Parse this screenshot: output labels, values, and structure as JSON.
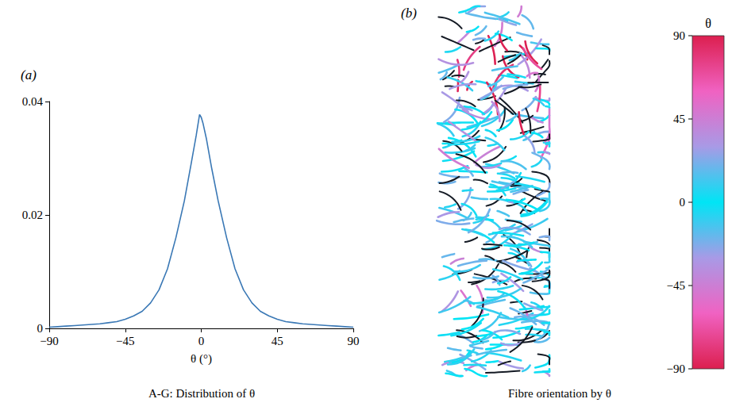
{
  "chart_data": [
    {
      "type": "line",
      "panel_label": "(a)",
      "caption": "A-G: Distribution of θ",
      "xlabel": "θ (°)",
      "x": [
        -90,
        -85,
        -80,
        -75,
        -70,
        -65,
        -60,
        -55,
        -50,
        -45,
        -40,
        -35,
        -30,
        -25,
        -20,
        -15,
        -10,
        -6,
        -3,
        -1,
        0,
        1,
        3,
        6,
        10,
        15,
        20,
        25,
        30,
        35,
        40,
        45,
        50,
        55,
        60,
        65,
        70,
        75,
        80,
        85,
        90
      ],
      "values": [
        0.0002,
        0.0003,
        0.0004,
        0.0005,
        0.0006,
        0.0007,
        0.0008,
        0.001,
        0.0012,
        0.0016,
        0.0022,
        0.003,
        0.0045,
        0.0068,
        0.0105,
        0.016,
        0.0225,
        0.029,
        0.034,
        0.0377,
        0.0372,
        0.0362,
        0.0335,
        0.0285,
        0.0225,
        0.016,
        0.0105,
        0.0068,
        0.0045,
        0.003,
        0.0022,
        0.0016,
        0.0012,
        0.001,
        0.0008,
        0.0007,
        0.0006,
        0.0005,
        0.0004,
        0.0003,
        0.0002
      ],
      "color": "#3a78b5",
      "xlim": [
        -90,
        90
      ],
      "xticks": [
        {
          "value": -90,
          "label": "−90"
        },
        {
          "value": -45,
          "label": "−45"
        },
        0,
        45,
        90
      ],
      "ylim": [
        0,
        0.04
      ],
      "yticks": [
        0,
        0.02,
        0.04
      ],
      "grid": false
    },
    {
      "type": "image",
      "panel_label": "(b)",
      "caption": "Fibre orientation by θ",
      "colorbar": {
        "title": "θ",
        "range": [
          -90,
          90
        ],
        "ticks": [
          90,
          45,
          0,
          {
            "value": -45,
            "label": "−45"
          },
          {
            "value": -90,
            "label": "−90"
          }
        ],
        "colors": [
          "#dc1f4f",
          "#f062c2",
          "#a89ae6",
          "#00e5f5",
          "#a89ae6",
          "#f062c2",
          "#dc1f4f"
        ]
      }
    }
  ]
}
